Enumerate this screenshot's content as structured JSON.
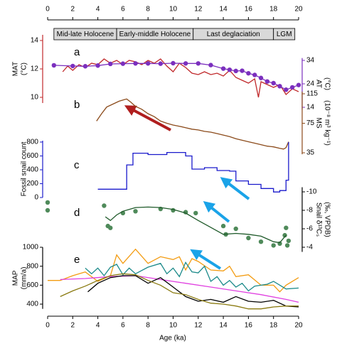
{
  "chart_data": {
    "type": "line",
    "xlabel": "Age (ka)",
    "xlim": [
      0,
      20
    ],
    "xticks": [
      0,
      2,
      4,
      6,
      8,
      10,
      12,
      14,
      16,
      18,
      20
    ],
    "periods": [
      {
        "label": "Mid-late Holocene",
        "start": 0.5,
        "end": 5.5
      },
      {
        "label": "Early-middle Holocene",
        "start": 5.5,
        "end": 11.6
      },
      {
        "label": "Last deglaciation",
        "start": 11.6,
        "end": 18
      },
      {
        "label": "LGM",
        "start": 18,
        "end": 19.7
      }
    ],
    "panels": [
      {
        "label": "a",
        "y": {
          "ylabel": [
            "MAT",
            "(°C)"
          ],
          "ylim": [
            9.6,
            14.4
          ],
          "yticks": [
            10,
            12,
            14
          ],
          "color": "#c0282a"
        },
        "y2": {
          "ylabel": [
            "AT",
            "(°C)"
          ],
          "ylim": [
            13,
            35
          ],
          "yticks": [
            14,
            24,
            34
          ],
          "color": "#7b2fbe"
        },
        "series": [
          {
            "axis": "y",
            "color": "#c0282a",
            "markers": false,
            "x": [
              1.2,
              1.6,
              2,
              2.5,
              3,
              3.5,
              4,
              4.5,
              5,
              5.5,
              6,
              6.5,
              7,
              7.5,
              8,
              8.5,
              9,
              9.5,
              10,
              10.5,
              11,
              11.5,
              12,
              12.5,
              13,
              13.5,
              14,
              14.5,
              15,
              15.5,
              16,
              16.5,
              16.8,
              17,
              17.5,
              18,
              18.5,
              19,
              19.5,
              20
            ],
            "values": [
              11.8,
              12.2,
              11.9,
              12.3,
              12.1,
              12.4,
              12.3,
              12.7,
              12.4,
              12.6,
              12.3,
              12.6,
              12.5,
              12.3,
              12.6,
              12.4,
              12.7,
              12.2,
              11.8,
              12.4,
              12.1,
              11.7,
              11.6,
              11.8,
              11.6,
              11.7,
              11.5,
              11.9,
              11.4,
              11.2,
              11.0,
              11.3,
              10.0,
              11.1,
              10.9,
              10.7,
              10.9,
              10.2,
              10.6,
              10.4
            ]
          },
          {
            "axis": "y2",
            "color": "#7b2fbe",
            "markers": true,
            "x": [
              0.5,
              2,
              3,
              4,
              5,
              6,
              7,
              8,
              9,
              10,
              11,
              12,
              13,
              14,
              14.5,
              15,
              15.5,
              16,
              16.5,
              17,
              17.5,
              18,
              18.5,
              19,
              19.5,
              20
            ],
            "values": [
              31.9,
              31.6,
              31.5,
              31.8,
              32.5,
              32.6,
              32.7,
              32.7,
              32.6,
              32.8,
              32.7,
              32.7,
              32.0,
              30.5,
              30.0,
              29.5,
              29.6,
              28.5,
              27.8,
              26.5,
              25.0,
              24.3,
              23.0,
              21.5,
              22.5,
              23.5
            ]
          }
        ]
      },
      {
        "label": "b",
        "y2": {
          "ylabel": [
            "MS",
            "(10⁻⁸ m³ kg⁻¹)"
          ],
          "ylim": [
            33,
            118
          ],
          "yticks": [
            35,
            75,
            115
          ],
          "color": "#8b4a1a"
        },
        "series": [
          {
            "axis": "y2",
            "color": "#8b4a1a",
            "markers": false,
            "x": [
              3.9,
              4.3,
              4.7,
              5.2,
              5.7,
              6.1,
              6.3,
              6.6,
              7,
              7.5,
              8,
              8.5,
              9,
              9.5,
              10,
              10.5,
              11,
              11.5,
              12,
              12.5,
              13,
              13.5,
              14,
              14.5,
              15,
              15.5,
              16,
              16.5,
              17,
              17.5,
              18,
              18.5,
              18.8,
              19,
              19.2
            ],
            "values": [
              78,
              88,
              97,
              101,
              105,
              107,
              108,
              104,
              98,
              94,
              88,
              84,
              78,
              75,
              72.6,
              71,
              69,
              67,
              66,
              64,
              63,
              61,
              59,
              57,
              54,
              52,
              50,
              48,
              46,
              44,
              43,
              41,
              40,
              42,
              50
            ]
          }
        ]
      },
      {
        "label": "c",
        "y": {
          "ylabel": [
            "Fossil snail count"
          ],
          "ylim": [
            0,
            820
          ],
          "yticks": [
            0,
            200,
            400,
            600,
            800
          ],
          "color": "#1a1acc"
        },
        "series": [
          {
            "axis": "y",
            "color": "#1a1acc",
            "markers": false,
            "step": true,
            "x": [
              4,
              6.3,
              6.8,
              8,
              9.5,
              11,
              11.5,
              12.5,
              13.5,
              14.5,
              15,
              16,
              17,
              18,
              18.5,
              19,
              19.2
            ],
            "values": [
              120,
              470,
              640,
              620,
              650,
              600,
              410,
              430,
              390,
              380,
              240,
              190,
              130,
              80,
              100,
              250,
              800
            ]
          }
        ]
      },
      {
        "label": "d",
        "y2": {
          "ylabel": [
            "Snail δ¹³Cₛ",
            "(‰, VPDB)"
          ],
          "ylim": [
            -10.5,
            -3.5
          ],
          "yticks": [
            -10,
            -8,
            -6,
            -4
          ],
          "color": "#000000",
          "inverted": true
        },
        "series": [
          {
            "axis": "y2",
            "color": "#4f8a5a",
            "markers": true,
            "line": false,
            "x": [
              0,
              0,
              4.5,
              4.8,
              5,
              6,
              7,
              9,
              10,
              11,
              11.8,
              14,
              14.2,
              15,
              16,
              17,
              18,
              18.5,
              18.9,
              19,
              19.1,
              19.2
            ],
            "values": [
              -8.85,
              -8.0,
              -8.5,
              -6.3,
              -6.1,
              -7.7,
              -7.9,
              -8.15,
              -8.0,
              -7.8,
              -7.7,
              -6.3,
              -5.4,
              -6.0,
              -5.0,
              -4.6,
              -4.2,
              -4.4,
              -5.3,
              -6.1,
              -4.2,
              -4.7
            ]
          },
          {
            "axis": "y2",
            "color": "#1f5a2a",
            "markers": false,
            "x": [
              4.6,
              5,
              5.5,
              6,
              6.5,
              7,
              8,
              9,
              10,
              11,
              12,
              13,
              14,
              15,
              16,
              17,
              18,
              18.5,
              19
            ],
            "values": [
              -7.3,
              -6.9,
              -7.5,
              -7.9,
              -8.1,
              -8.3,
              -8.35,
              -8.3,
              -8.1,
              -7.7,
              -6.9,
              -6.15,
              -5.4,
              -5.5,
              -5.4,
              -5.2,
              -4.6,
              -4.5,
              -5.3
            ]
          }
        ]
      },
      {
        "label": "e",
        "y": {
          "ylabel": [
            "MAP",
            "(mm/a)"
          ],
          "ylim": [
            350,
            1000
          ],
          "yticks": [
            400,
            600,
            800,
            1000
          ],
          "color": "#000000"
        },
        "series": [
          {
            "axis": "y",
            "color": "#f39c12",
            "markers": false,
            "x": [
              0,
              1,
              2,
              3,
              4,
              5,
              5.5,
              6,
              7,
              8,
              9,
              10,
              10.5,
              11,
              11.5,
              12,
              13,
              14,
              14.5,
              15,
              16,
              17,
              18,
              18.5,
              19,
              20
            ],
            "values": [
              650,
              650,
              700,
              740,
              640,
              700,
              920,
              830,
              980,
              830,
              900,
              870,
              900,
              760,
              880,
              850,
              760,
              750,
              800,
              690,
              710,
              600,
              600,
              530,
              600,
              680
            ]
          },
          {
            "axis": "y",
            "color": "#1b8a8a",
            "markers": false,
            "x": [
              3,
              3.5,
              4,
              4.5,
              5,
              5.5,
              6,
              6.5,
              7,
              8,
              9,
              9.5,
              10,
              10.5,
              11,
              11.5,
              12,
              12.5,
              13,
              13.5,
              14,
              14.5,
              15,
              15.5,
              16,
              16.5,
              17,
              17.5,
              18,
              19,
              20
            ],
            "values": [
              780,
              720,
              780,
              700,
              790,
              820,
              710,
              780,
              720,
              790,
              830,
              720,
              780,
              690,
              840,
              740,
              730,
              800,
              640,
              690,
              600,
              650,
              580,
              620,
              540,
              590,
              600,
              610,
              640,
              560,
              570
            ]
          },
          {
            "axis": "y",
            "color": "#e040e0",
            "markers": false,
            "x": [
              1,
              3,
              5,
              7,
              9,
              11,
              13,
              15,
              17,
              19,
              20
            ],
            "values": [
              660,
              670,
              690,
              700,
              660,
              620,
              580,
              540,
              500,
              450,
              420
            ]
          },
          {
            "axis": "y",
            "color": "#000000",
            "markers": false,
            "x": [
              3.2,
              4,
              5,
              6,
              7,
              8,
              9,
              10,
              11,
              12,
              13,
              14,
              15,
              16,
              17,
              18,
              19,
              20
            ],
            "values": [
              530,
              620,
              680,
              700,
              700,
              620,
              680,
              580,
              480,
              430,
              450,
              420,
              480,
              430,
              420,
              440,
              380,
              370
            ]
          },
          {
            "axis": "y",
            "color": "#8a7a10",
            "markers": false,
            "x": [
              1,
              2,
              3,
              4,
              5,
              6,
              7,
              8,
              9,
              10,
              11,
              12,
              13,
              14,
              15,
              16,
              17,
              18,
              19,
              20
            ],
            "values": [
              480,
              540,
              590,
              650,
              700,
              720,
              710,
              650,
              600,
              520,
              500,
              450,
              410,
              400,
              380,
              350,
              350,
              370,
              380,
              380
            ]
          }
        ]
      }
    ]
  }
}
